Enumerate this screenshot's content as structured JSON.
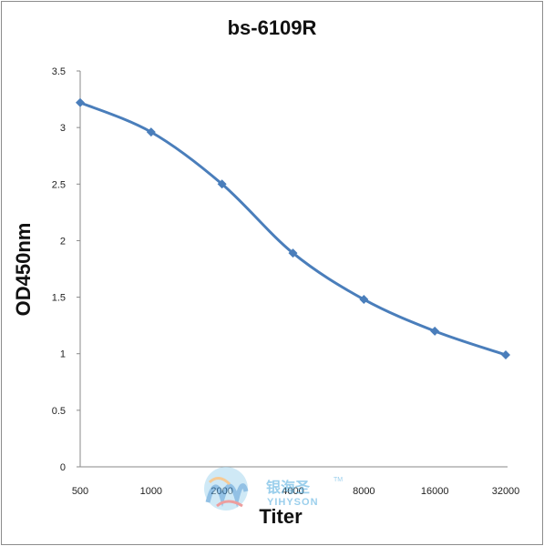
{
  "chart_data": {
    "type": "line",
    "title": "bs-6109R",
    "xlabel": "Titer",
    "ylabel": "OD450nm",
    "categories": [
      "500",
      "1000",
      "2000",
      "4000",
      "8000",
      "16000",
      "32000"
    ],
    "series": [
      {
        "values": [
          3.22,
          2.96,
          2.5,
          1.89,
          1.48,
          1.2,
          0.99
        ]
      }
    ],
    "ylim": [
      0,
      3.5
    ],
    "yticks": [
      "0",
      "0.5",
      "1",
      "1.5",
      "2",
      "2.5",
      "3",
      "3.5"
    ],
    "grid": false,
    "legend": "none",
    "line_color": "#4a7ebb"
  },
  "watermark": {
    "text": "银海圣",
    "sub": "YIHYSON",
    "tm": "TM"
  }
}
